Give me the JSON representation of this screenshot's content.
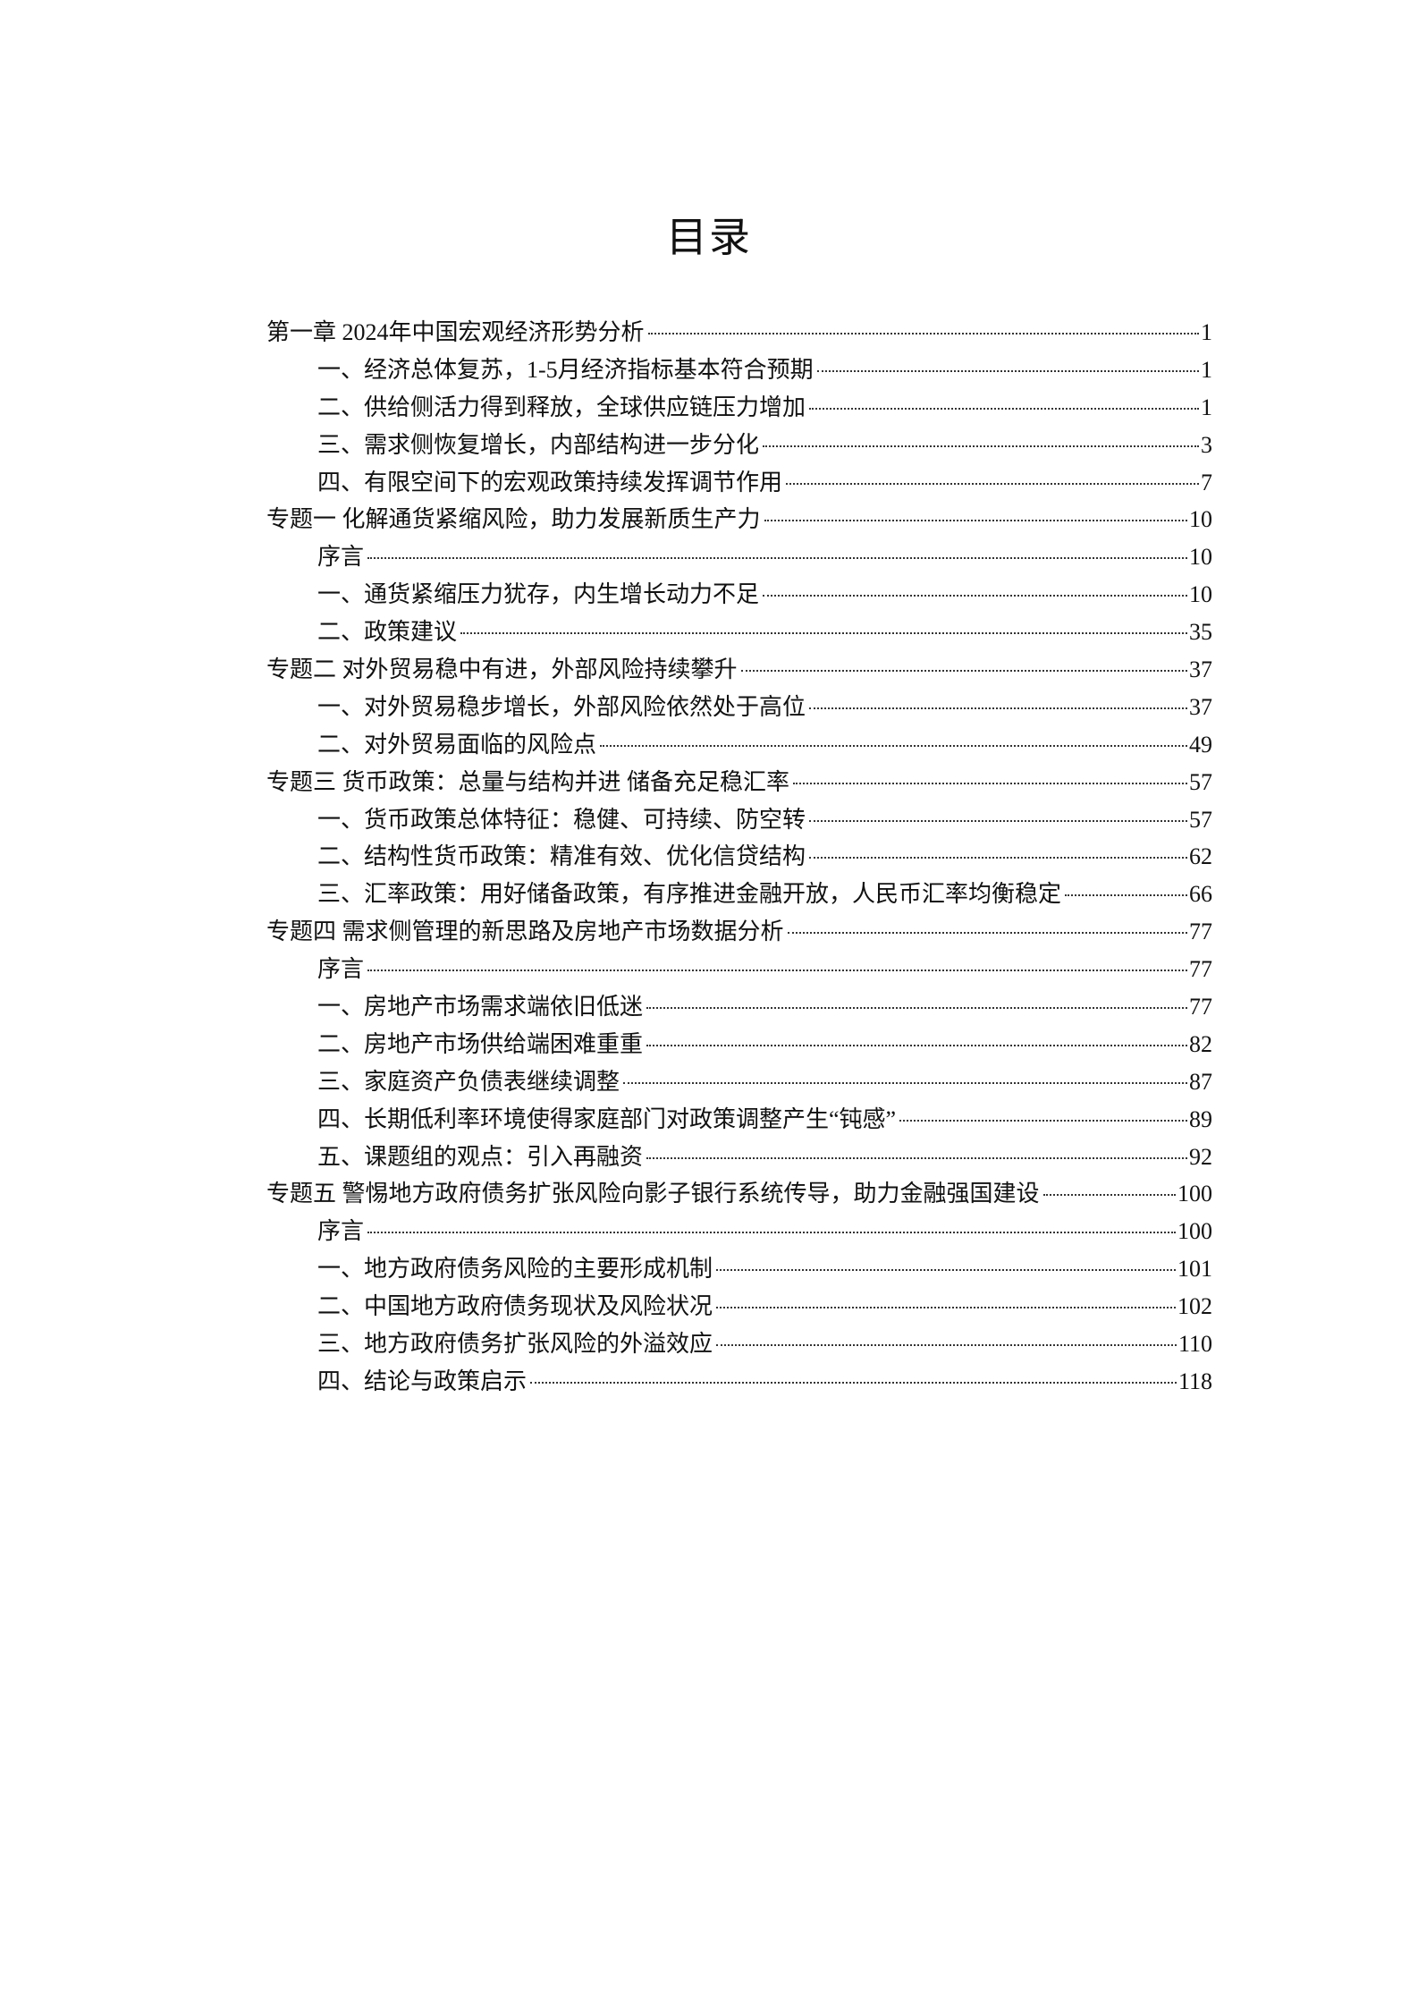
{
  "title": "目录",
  "entries": [
    {
      "level": 1,
      "label": "第一章 2024年中国宏观经济形势分析",
      "page": "1"
    },
    {
      "level": 2,
      "label": "一、经济总体复苏，1-5月经济指标基本符合预期",
      "page": "1"
    },
    {
      "level": 2,
      "label": "二、供给侧活力得到释放，全球供应链压力增加",
      "page": "1"
    },
    {
      "level": 2,
      "label": "三、需求侧恢复增长，内部结构进一步分化",
      "page": "3"
    },
    {
      "level": 2,
      "label": "四、有限空间下的宏观政策持续发挥调节作用",
      "page": "7"
    },
    {
      "level": 1,
      "label": "专题一 化解通货紧缩风险，助力发展新质生产力",
      "page": "10"
    },
    {
      "level": 2,
      "label": "序言",
      "page": "10"
    },
    {
      "level": 2,
      "label": "一、通货紧缩压力犹存，内生增长动力不足",
      "page": "10"
    },
    {
      "level": 2,
      "label": "二、政策建议",
      "page": "35"
    },
    {
      "level": 1,
      "label": "专题二 对外贸易稳中有进，外部风险持续攀升",
      "page": "37"
    },
    {
      "level": 2,
      "label": "一、对外贸易稳步增长，外部风险依然处于高位",
      "page": "37"
    },
    {
      "level": 2,
      "label": "二、对外贸易面临的风险点",
      "page": "49"
    },
    {
      "level": 1,
      "label": "专题三 货币政策：总量与结构并进 储备充足稳汇率",
      "page": "57"
    },
    {
      "level": 2,
      "label": "一、货币政策总体特征：稳健、可持续、防空转",
      "page": "57"
    },
    {
      "level": 2,
      "label": "二、结构性货币政策：精准有效、优化信贷结构",
      "page": "62"
    },
    {
      "level": 2,
      "label": "三、汇率政策：用好储备政策，有序推进金融开放，人民币汇率均衡稳定",
      "page": "66"
    },
    {
      "level": 1,
      "label": "专题四 需求侧管理的新思路及房地产市场数据分析",
      "page": "77"
    },
    {
      "level": 2,
      "label": "序言",
      "page": "77"
    },
    {
      "level": 2,
      "label": "一、房地产市场需求端依旧低迷",
      "page": "77"
    },
    {
      "level": 2,
      "label": "二、房地产市场供给端困难重重",
      "page": "82"
    },
    {
      "level": 2,
      "label": "三、家庭资产负债表继续调整",
      "page": "87"
    },
    {
      "level": 2,
      "label": "四、长期低利率环境使得家庭部门对政策调整产生“钝感”",
      "page": "89"
    },
    {
      "level": 2,
      "label": "五、课题组的观点：引入再融资",
      "page": "92"
    },
    {
      "level": 1,
      "label": "专题五 警惕地方政府债务扩张风险向影子银行系统传导，助力金融强国建设",
      "page": "100"
    },
    {
      "level": 2,
      "label": "序言",
      "page": "100"
    },
    {
      "level": 2,
      "label": "一、地方政府债务风险的主要形成机制",
      "page": "101"
    },
    {
      "level": 2,
      "label": "二、中国地方政府债务现状及风险状况",
      "page": "102"
    },
    {
      "level": 2,
      "label": "三、地方政府债务扩张风险的外溢效应",
      "page": "110"
    },
    {
      "level": 2,
      "label": "四、结论与政策启示",
      "page": "118"
    }
  ]
}
